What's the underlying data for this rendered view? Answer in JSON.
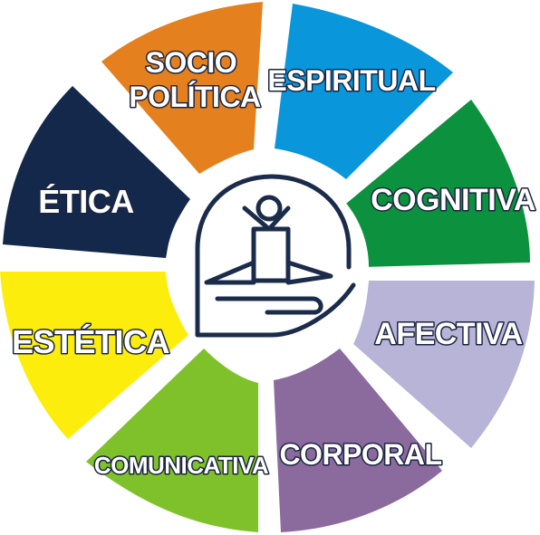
{
  "diagram": {
    "segments": [
      {
        "id": "espiritual",
        "lines": [
          "ESPIRITUAL"
        ],
        "color": "#0996db"
      },
      {
        "id": "cognitiva",
        "lines": [
          "COGNITIVA"
        ],
        "color": "#0c913e"
      },
      {
        "id": "afectiva",
        "lines": [
          "AFECTIVA"
        ],
        "color": "#b7b4d7"
      },
      {
        "id": "corporal",
        "lines": [
          "CORPORAL"
        ],
        "color": "#8b6a9e"
      },
      {
        "id": "comunicativa",
        "lines": [
          "COMUNICATIVA"
        ],
        "color": "#7fc12b"
      },
      {
        "id": "estetica",
        "lines": [
          "ESTÉTICA"
        ],
        "color": "#fced0c"
      },
      {
        "id": "etica",
        "lines": [
          "ÉTICA"
        ],
        "color": "#13284a"
      },
      {
        "id": "sociopolitica",
        "lines": [
          "SOCIO",
          "POLÍTICA"
        ],
        "color": "#e5801e"
      }
    ],
    "center": {
      "icon": "person-in-hand-icon",
      "stroke_color": "#1b2c4b"
    }
  }
}
